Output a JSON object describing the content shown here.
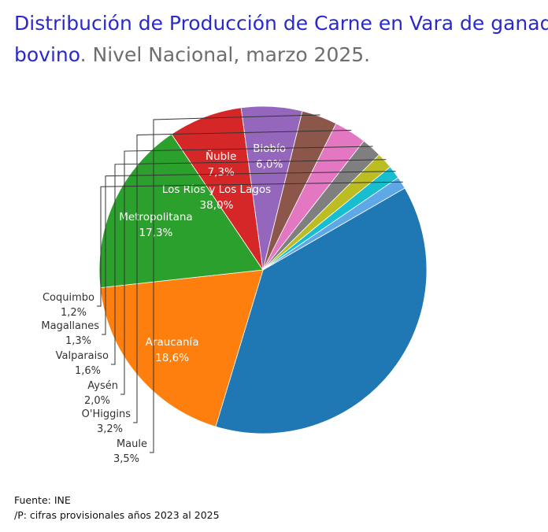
{
  "title": {
    "line1": "Distribución de Producción de Carne en Vara de ganado",
    "line2_blue": "bovino",
    "line2_sep": ". ",
    "line2_gray": "Nivel Nacional, marzo 2025."
  },
  "chart_data": {
    "type": "pie",
    "slices": [
      {
        "label": "Los Ríos y Los Lagos",
        "value_label": "38,0%",
        "value": 38.0,
        "color": "#1f77b4"
      },
      {
        "label": "Araucanía",
        "value_label": "18,6%",
        "value": 18.6,
        "color": "#ff7f0e"
      },
      {
        "label": "Metropolitana",
        "value_label": "17,3%",
        "value": 17.3,
        "color": "#2ca02c"
      },
      {
        "label": "Ñuble",
        "value_label": "7,3%",
        "value": 7.3,
        "color": "#d62728"
      },
      {
        "label": "Biobío",
        "value_label": "6,0%",
        "value": 6.0,
        "color": "#9467bd"
      },
      {
        "label": "Maule",
        "value_label": "3,5%",
        "value": 3.5,
        "color": "#8c564b"
      },
      {
        "label": "O'Higgins",
        "value_label": "3,2%",
        "value": 3.2,
        "color": "#e377c2"
      },
      {
        "label": "Aysén",
        "value_label": "2,0%",
        "value": 2.0,
        "color": "#7f7f7f"
      },
      {
        "label": "Valparaiso",
        "value_label": "1,6%",
        "value": 1.6,
        "color": "#bcbd22"
      },
      {
        "label": "Magallanes",
        "value_label": "1,3%",
        "value": 1.3,
        "color": "#17becf"
      },
      {
        "label": "Coquimbo",
        "value_label": "1,2%",
        "value": 1.2,
        "color": "#5fa8e8"
      }
    ]
  },
  "footer": {
    "source": "Fuente: INE",
    "note": "/P: cifras provisionales años 2023 al 2025"
  }
}
